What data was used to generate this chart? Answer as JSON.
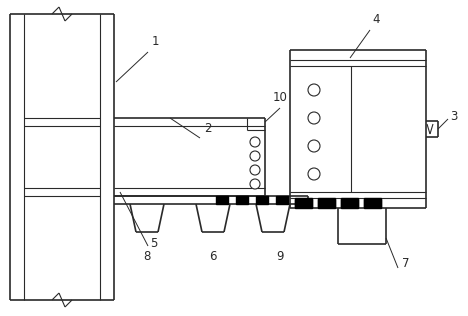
{
  "fig_width": 4.68,
  "fig_height": 3.16,
  "dpi": 100,
  "line_color": "#2a2a2a",
  "bg_color": "#ffffff",
  "lw": 0.8,
  "lw_thick": 1.2
}
